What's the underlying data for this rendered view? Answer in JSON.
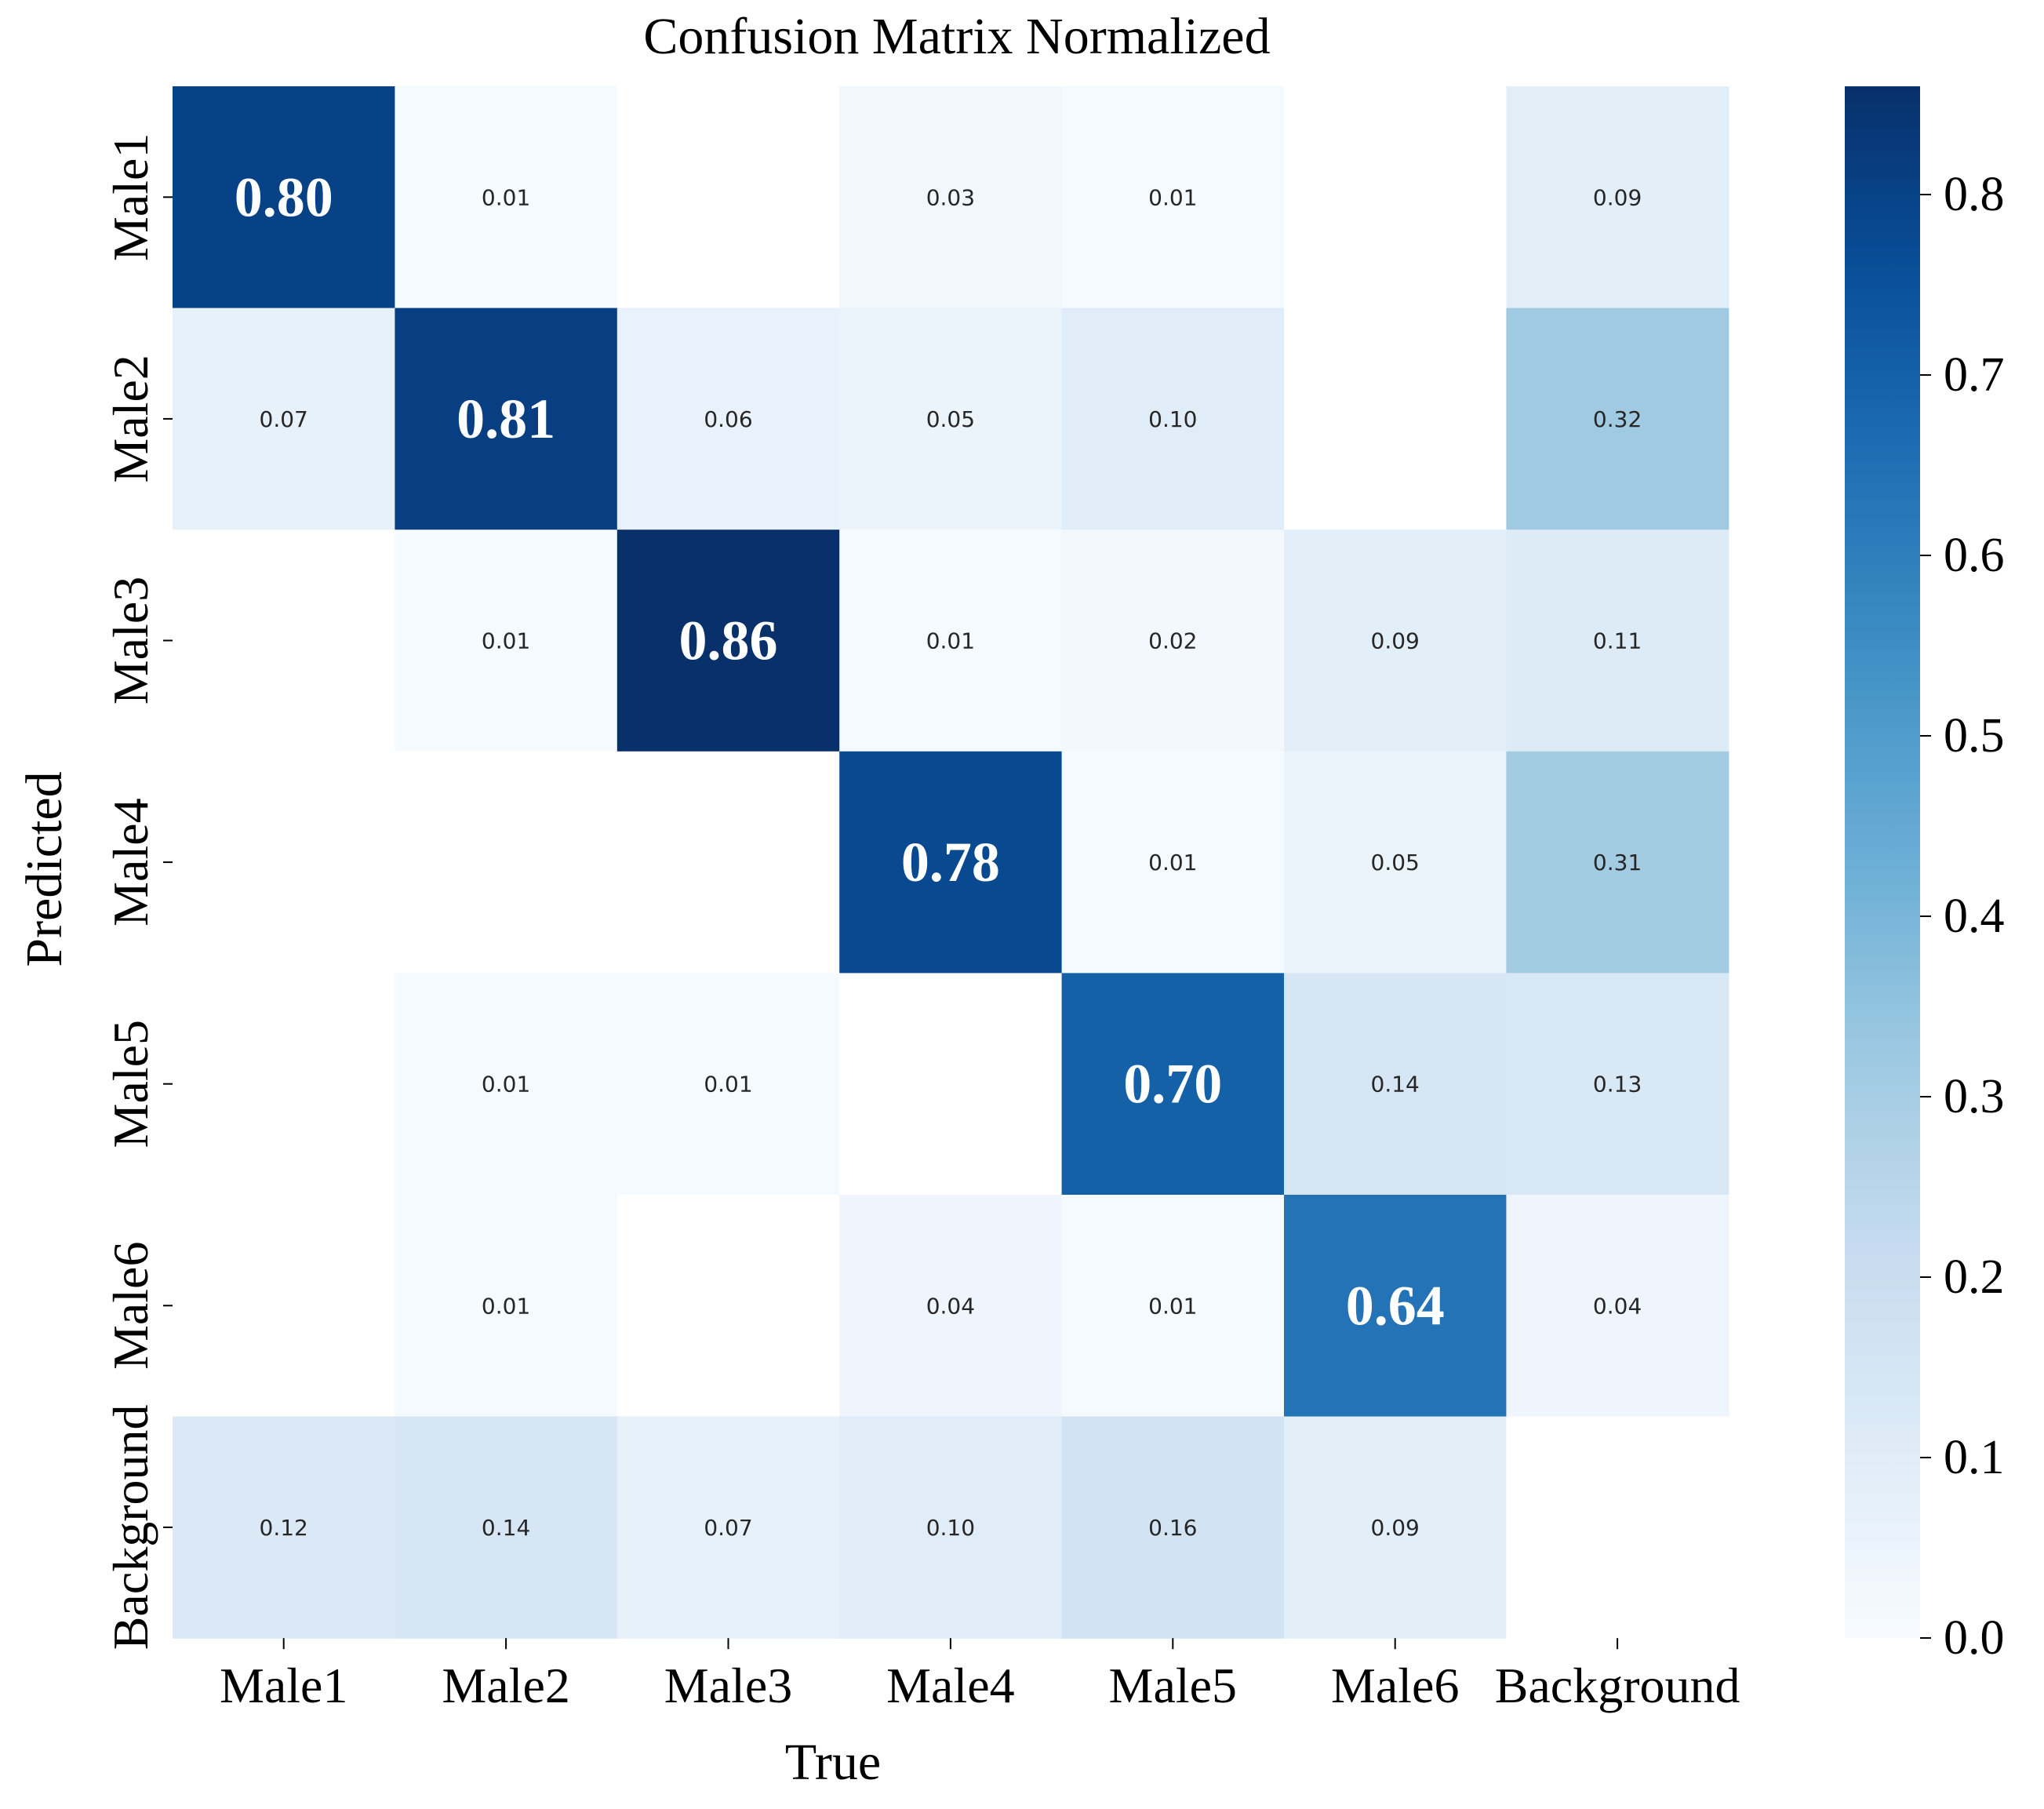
{
  "chart_data": {
    "type": "heatmap",
    "title": "Confusion Matrix Normalized",
    "xlabel": "True",
    "ylabel": "Predicted",
    "x_categories": [
      "Male1",
      "Male2",
      "Male3",
      "Male4",
      "Male5",
      "Male6",
      "Background"
    ],
    "y_categories": [
      "Male1",
      "Male2",
      "Male3",
      "Male4",
      "Male5",
      "Male6",
      "Background"
    ],
    "values": [
      [
        0.8,
        0.01,
        null,
        0.03,
        0.01,
        null,
        0.09
      ],
      [
        0.07,
        0.81,
        0.06,
        0.05,
        0.1,
        null,
        0.32
      ],
      [
        null,
        0.01,
        0.86,
        0.01,
        0.02,
        0.09,
        0.11
      ],
      [
        null,
        null,
        null,
        0.78,
        0.01,
        0.05,
        0.31
      ],
      [
        null,
        0.01,
        0.01,
        null,
        0.7,
        0.14,
        0.13
      ],
      [
        null,
        0.01,
        null,
        0.04,
        0.01,
        0.64,
        0.04
      ],
      [
        0.12,
        0.14,
        0.07,
        0.1,
        0.16,
        0.09,
        null
      ]
    ],
    "colorbar": {
      "colormap": "Blues",
      "range": [
        0,
        0.86
      ],
      "ticks": [
        0.0,
        0.1,
        0.2,
        0.3,
        0.4,
        0.5,
        0.6,
        0.7,
        0.8
      ],
      "tick_labels": [
        "0.0",
        "0.1",
        "0.2",
        "0.3",
        "0.4",
        "0.5",
        "0.6",
        "0.7",
        "0.8"
      ]
    },
    "grid": false
  }
}
